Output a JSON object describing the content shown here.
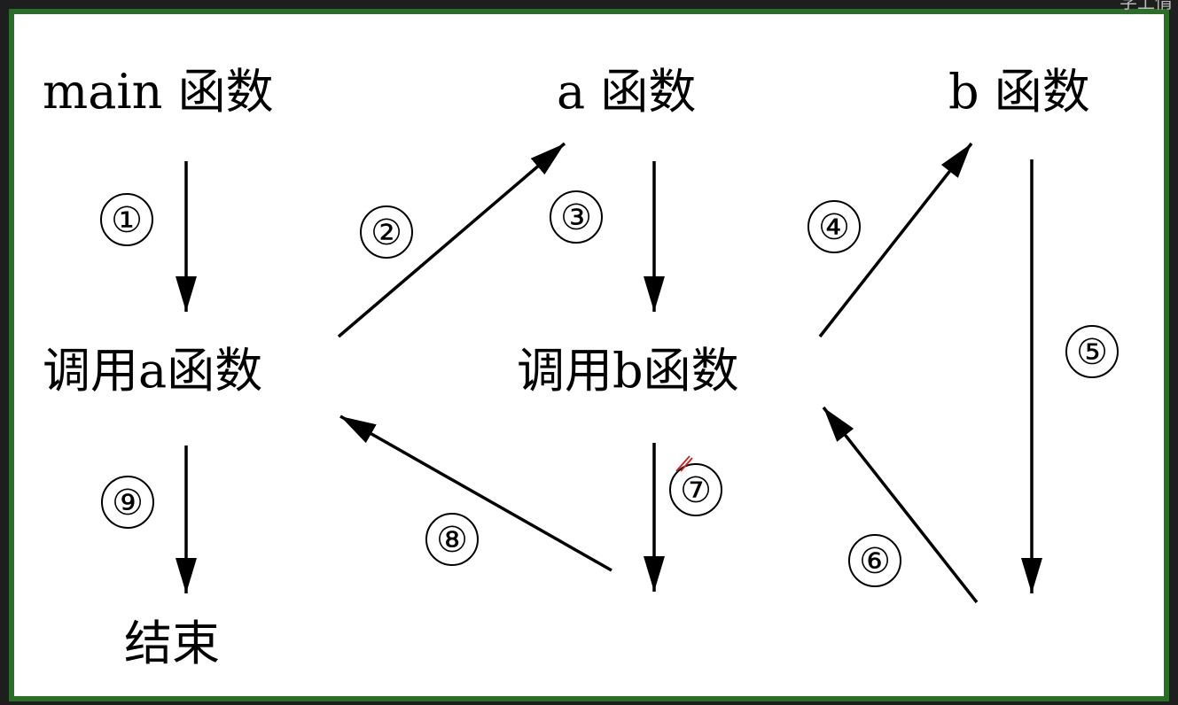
{
  "corner_text": "学上情",
  "nodes": {
    "main_func": "main  函数",
    "a_func": "a 函数",
    "b_func": "b 函数",
    "call_a": "调用a函数",
    "call_b": "调用b函数",
    "end": "结束"
  },
  "steps": [
    "①",
    "②",
    "③",
    "④",
    "⑤",
    "⑥",
    "⑦",
    "⑧",
    "⑨"
  ],
  "colors": {
    "border": "#2a6e28",
    "background": "#ffffff",
    "ink": "#000000",
    "cursor": "#d02020"
  }
}
